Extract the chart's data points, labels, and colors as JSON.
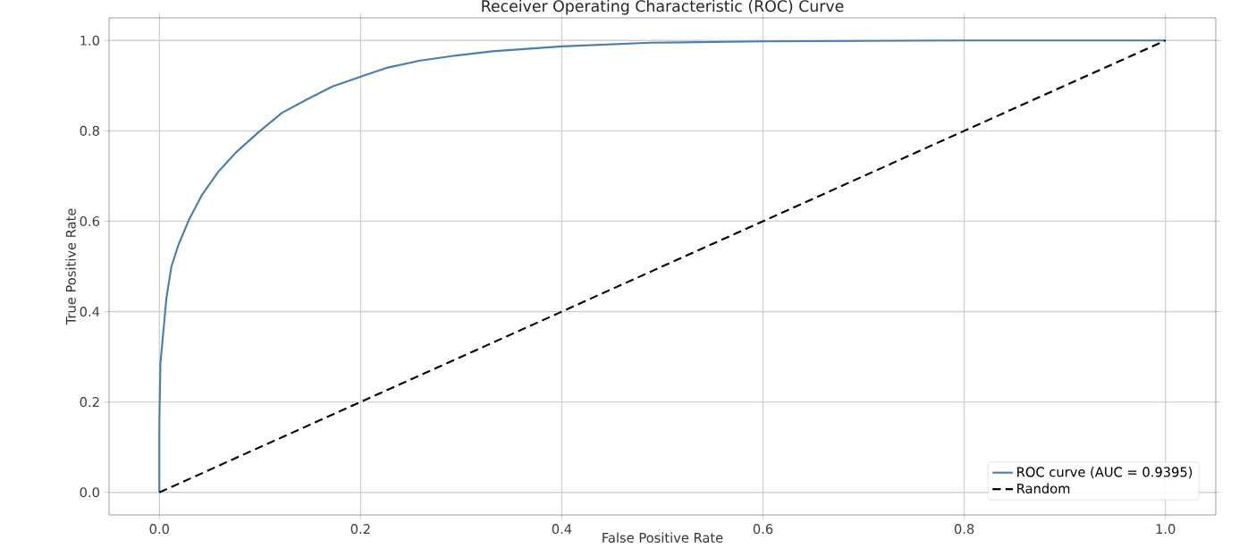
{
  "chart_data": {
    "type": "line",
    "title": "Receiver Operating Characteristic (ROC) Curve",
    "xlabel": "False Positive Rate",
    "ylabel": "True Positive Rate",
    "xlim": [
      -0.05,
      1.05
    ],
    "ylim": [
      -0.05,
      1.05
    ],
    "xticks": [
      {
        "value": 0,
        "label": "0.0"
      },
      {
        "value": 0.2,
        "label": "0.2"
      },
      {
        "value": 0.4,
        "label": "0.4"
      },
      {
        "value": 0.6,
        "label": "0.6"
      },
      {
        "value": 0.8,
        "label": "0.8"
      },
      {
        "value": 1,
        "label": "1.0"
      }
    ],
    "yticks": [
      {
        "value": 0,
        "label": "0.0"
      },
      {
        "value": 0.2,
        "label": "0.2"
      },
      {
        "value": 0.4,
        "label": "0.4"
      },
      {
        "value": 0.6,
        "label": "0.6"
      },
      {
        "value": 0.8,
        "label": "0.8"
      },
      {
        "value": 1,
        "label": "1.0"
      }
    ],
    "grid": true,
    "legend": "bottom right",
    "series": [
      {
        "name": "ROC curve (AUC = 0.9395)",
        "color": "#4a7fad",
        "line_style": "solid",
        "x": [
          0,
          0,
          0.001,
          0.004,
          0.007,
          0.012,
          0.019,
          0.03,
          0.042,
          0.058,
          0.076,
          0.098,
          0.122,
          0.147,
          0.172,
          0.2,
          0.227,
          0.258,
          0.292,
          0.331,
          0.4,
          0.488,
          0.6,
          0.8,
          1
        ],
        "values": [
          0,
          0.15,
          0.284,
          0.357,
          0.43,
          0.5,
          0.548,
          0.606,
          0.657,
          0.708,
          0.752,
          0.796,
          0.84,
          0.87,
          0.898,
          0.92,
          0.94,
          0.955,
          0.966,
          0.976,
          0.987,
          0.995,
          0.998,
          1,
          1
        ]
      },
      {
        "name": "Random",
        "color": "#000000",
        "line_style": "dashed",
        "x": [
          0,
          1
        ],
        "values": [
          0,
          1
        ]
      }
    ]
  }
}
